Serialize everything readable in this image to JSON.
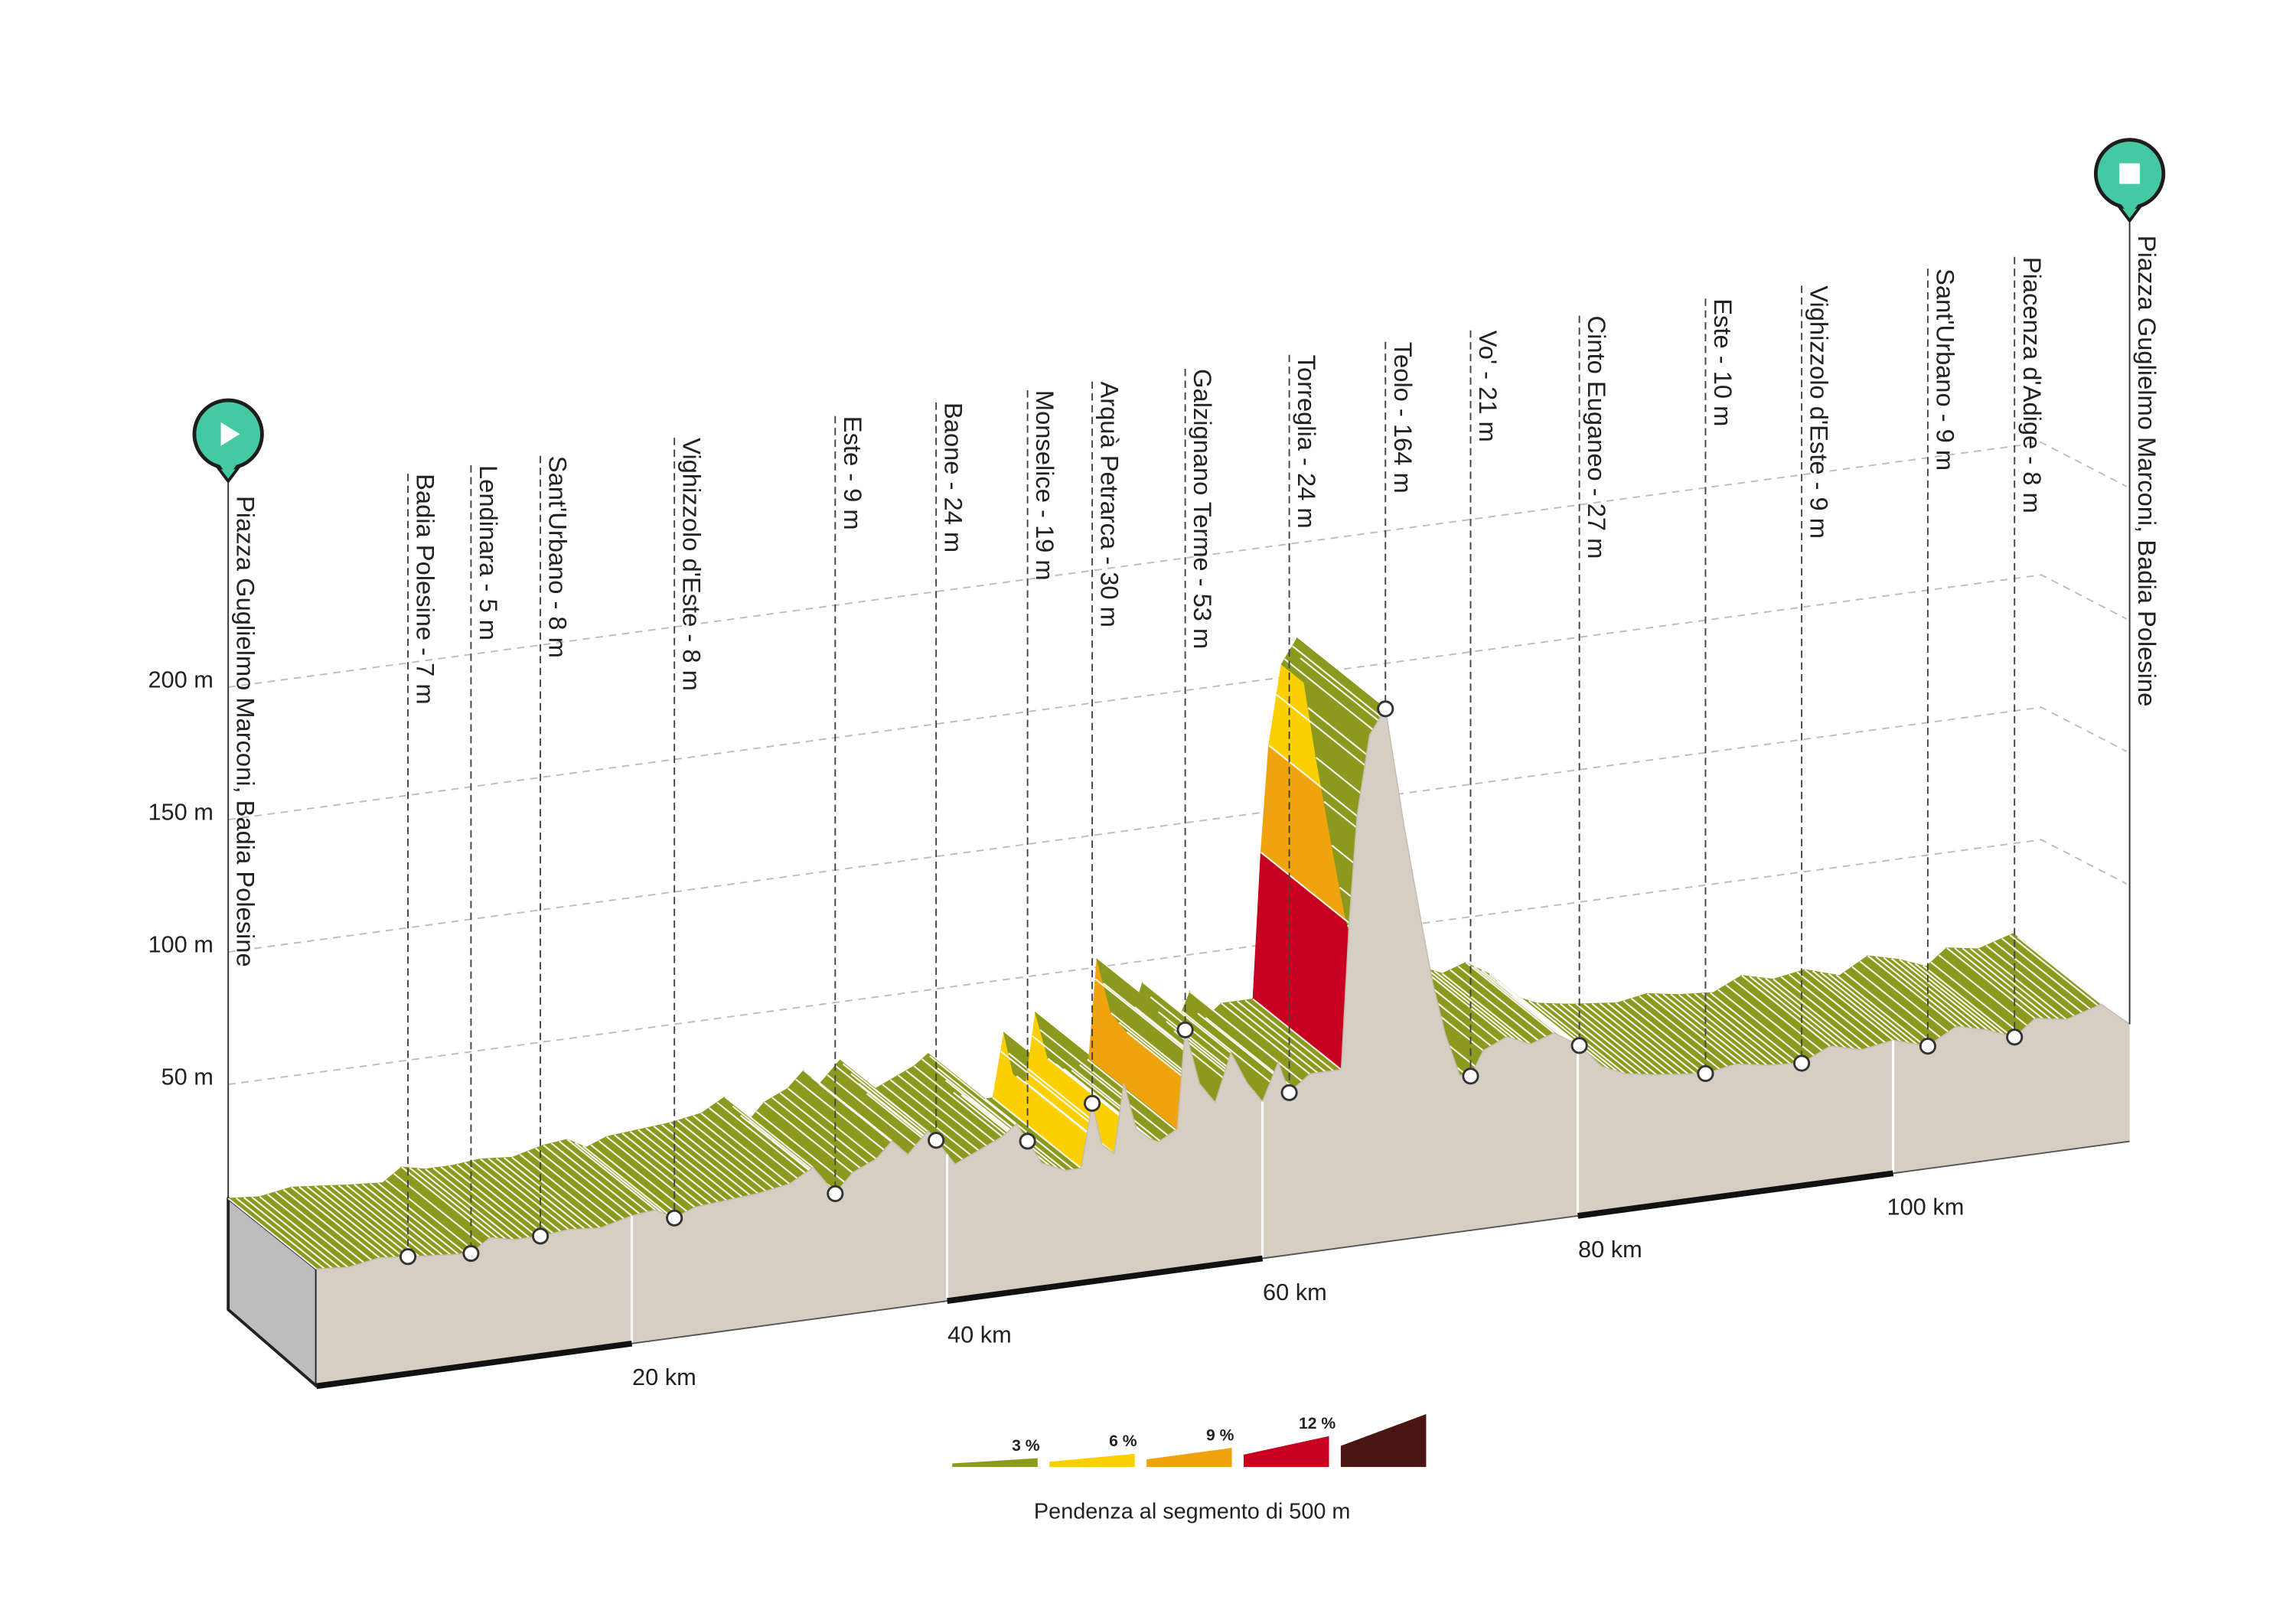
{
  "chart_data": {
    "type": "area",
    "km": [
      0,
      2,
      4,
      5.8,
      7.5,
      9.8,
      11,
      12.5,
      14.2,
      16,
      18,
      20,
      21.5,
      22.7,
      24,
      26,
      28,
      30,
      31.5,
      32.9,
      34,
      35.5,
      36.5,
      37.5,
      38.8,
      39.3,
      40.5,
      42,
      43.5,
      44.4,
      45.1,
      46,
      47.5,
      48.5,
      49.2,
      49.8,
      50.6,
      51.2,
      52,
      52.8,
      53.4,
      54.6,
      55.1,
      56,
      57,
      58,
      59,
      60,
      61,
      61.7,
      63,
      65,
      65.5,
      66,
      66.8,
      67.8,
      69,
      70,
      70.8,
      71.6,
      72.5,
      73.2,
      74,
      75.5,
      77,
      78.5,
      80.1,
      81.5,
      83,
      85,
      86.5,
      88.1,
      90,
      92,
      94.2,
      96,
      98,
      100,
      102.2,
      104,
      106,
      107.7,
      109,
      111,
      113.2,
      115
    ],
    "elevation": [
      7,
      6,
      8,
      7,
      6,
      5,
      10,
      8,
      8,
      9,
      8,
      11,
      12,
      8,
      11,
      12,
      13,
      15,
      20,
      9,
      16,
      20,
      26,
      20,
      28,
      24,
      14,
      18,
      22,
      26,
      19,
      10,
      6,
      6,
      30,
      14,
      10,
      36,
      18,
      14,
      12,
      16,
      53,
      32,
      24,
      42,
      30,
      22,
      36,
      24,
      30,
      30,
      85,
      125,
      155,
      164,
      118,
      84,
      58,
      38,
      22,
      21,
      30,
      34,
      30,
      33,
      27,
      18,
      14,
      12,
      11,
      10,
      12,
      10,
      9,
      14,
      11,
      13,
      9,
      15,
      12,
      8,
      14,
      12,
      16,
      7
    ],
    "xlim": [
      0,
      115
    ],
    "ylim": [
      0,
      200
    ],
    "xticks": [
      {
        "value": 20,
        "label": "20 km"
      },
      {
        "value": 40,
        "label": "40 km"
      },
      {
        "value": 60,
        "label": "60 km"
      },
      {
        "value": 80,
        "label": "80 km"
      },
      {
        "value": 100,
        "label": "100 km"
      }
    ],
    "yticks": [
      {
        "value": 50,
        "label": "50 m"
      },
      {
        "value": 100,
        "label": "100 m"
      },
      {
        "value": 150,
        "label": "150 m"
      },
      {
        "value": 200,
        "label": "200 m"
      }
    ],
    "grid": true,
    "fill_color": "#d6cec3",
    "start": {
      "km": 0,
      "label": "Piazza Guglielmo Marconi, Badia Polesine"
    },
    "finish": {
      "km": 115,
      "label": "Piazza Guglielmo Marconi, Badia Polesine"
    },
    "waypoints": [
      {
        "km": 5.8,
        "label": "Badia Polesine - 7 m"
      },
      {
        "km": 9.8,
        "label": "Lendinara - 5 m"
      },
      {
        "km": 14.2,
        "label": "Sant'Urbano - 8 m"
      },
      {
        "km": 22.7,
        "label": "Vighizzolo d'Este - 8 m"
      },
      {
        "km": 32.9,
        "label": "Este - 9 m"
      },
      {
        "km": 39.3,
        "label": "Baone - 24 m"
      },
      {
        "km": 45.1,
        "label": "Monselice - 19 m"
      },
      {
        "km": 49.2,
        "label": "Arquà Petrarca - 30 m"
      },
      {
        "km": 55.1,
        "label": "Galzignano Terme - 53 m"
      },
      {
        "km": 61.7,
        "label": "Torreglia - 24 m"
      },
      {
        "km": 67.8,
        "label": "Teolo - 164 m"
      },
      {
        "km": 73.2,
        "label": "Vo' - 21 m"
      },
      {
        "km": 80.1,
        "label": "Cinto Euganeo - 27 m"
      },
      {
        "km": 88.1,
        "label": "Este - 10 m"
      },
      {
        "km": 94.2,
        "label": "Vighizzolo d'Este - 9 m"
      },
      {
        "km": 102.2,
        "label": "Sant'Urbano - 9 m"
      },
      {
        "km": 107.7,
        "label": "Piacenza d'Adige - 8 m"
      }
    ],
    "legend": {
      "title": "Pendenza al segmento di 500 m",
      "items": [
        {
          "value": 3,
          "label": "3 %",
          "color": "#8b9a1e"
        },
        {
          "value": 6,
          "label": "6 %",
          "color": "#fccf00"
        },
        {
          "value": 9,
          "label": "9 %",
          "color": "#efa30c"
        },
        {
          "value": 12,
          "label": "12 %",
          "color": "#c8001f"
        },
        {
          "color": "#4a1512"
        }
      ]
    }
  }
}
